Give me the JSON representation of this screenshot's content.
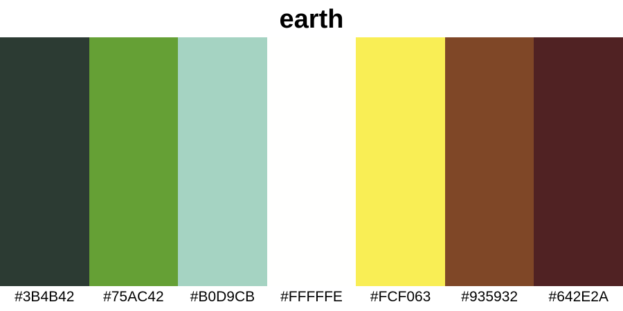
{
  "title": "earth",
  "swatches": [
    {
      "hex": "#3B4B42",
      "color": "#2C3B33"
    },
    {
      "hex": "#75AC42",
      "color": "#65A035"
    },
    {
      "hex": "#B0D9CB",
      "color": "#A5D3C2"
    },
    {
      "hex": "#FFFFFE",
      "color": "#FFFFFE"
    },
    {
      "hex": "#FCF063",
      "color": "#F9EE55"
    },
    {
      "hex": "#935932",
      "color": "#7F4727"
    },
    {
      "hex": "#642E2A",
      "color": "#502223"
    }
  ]
}
